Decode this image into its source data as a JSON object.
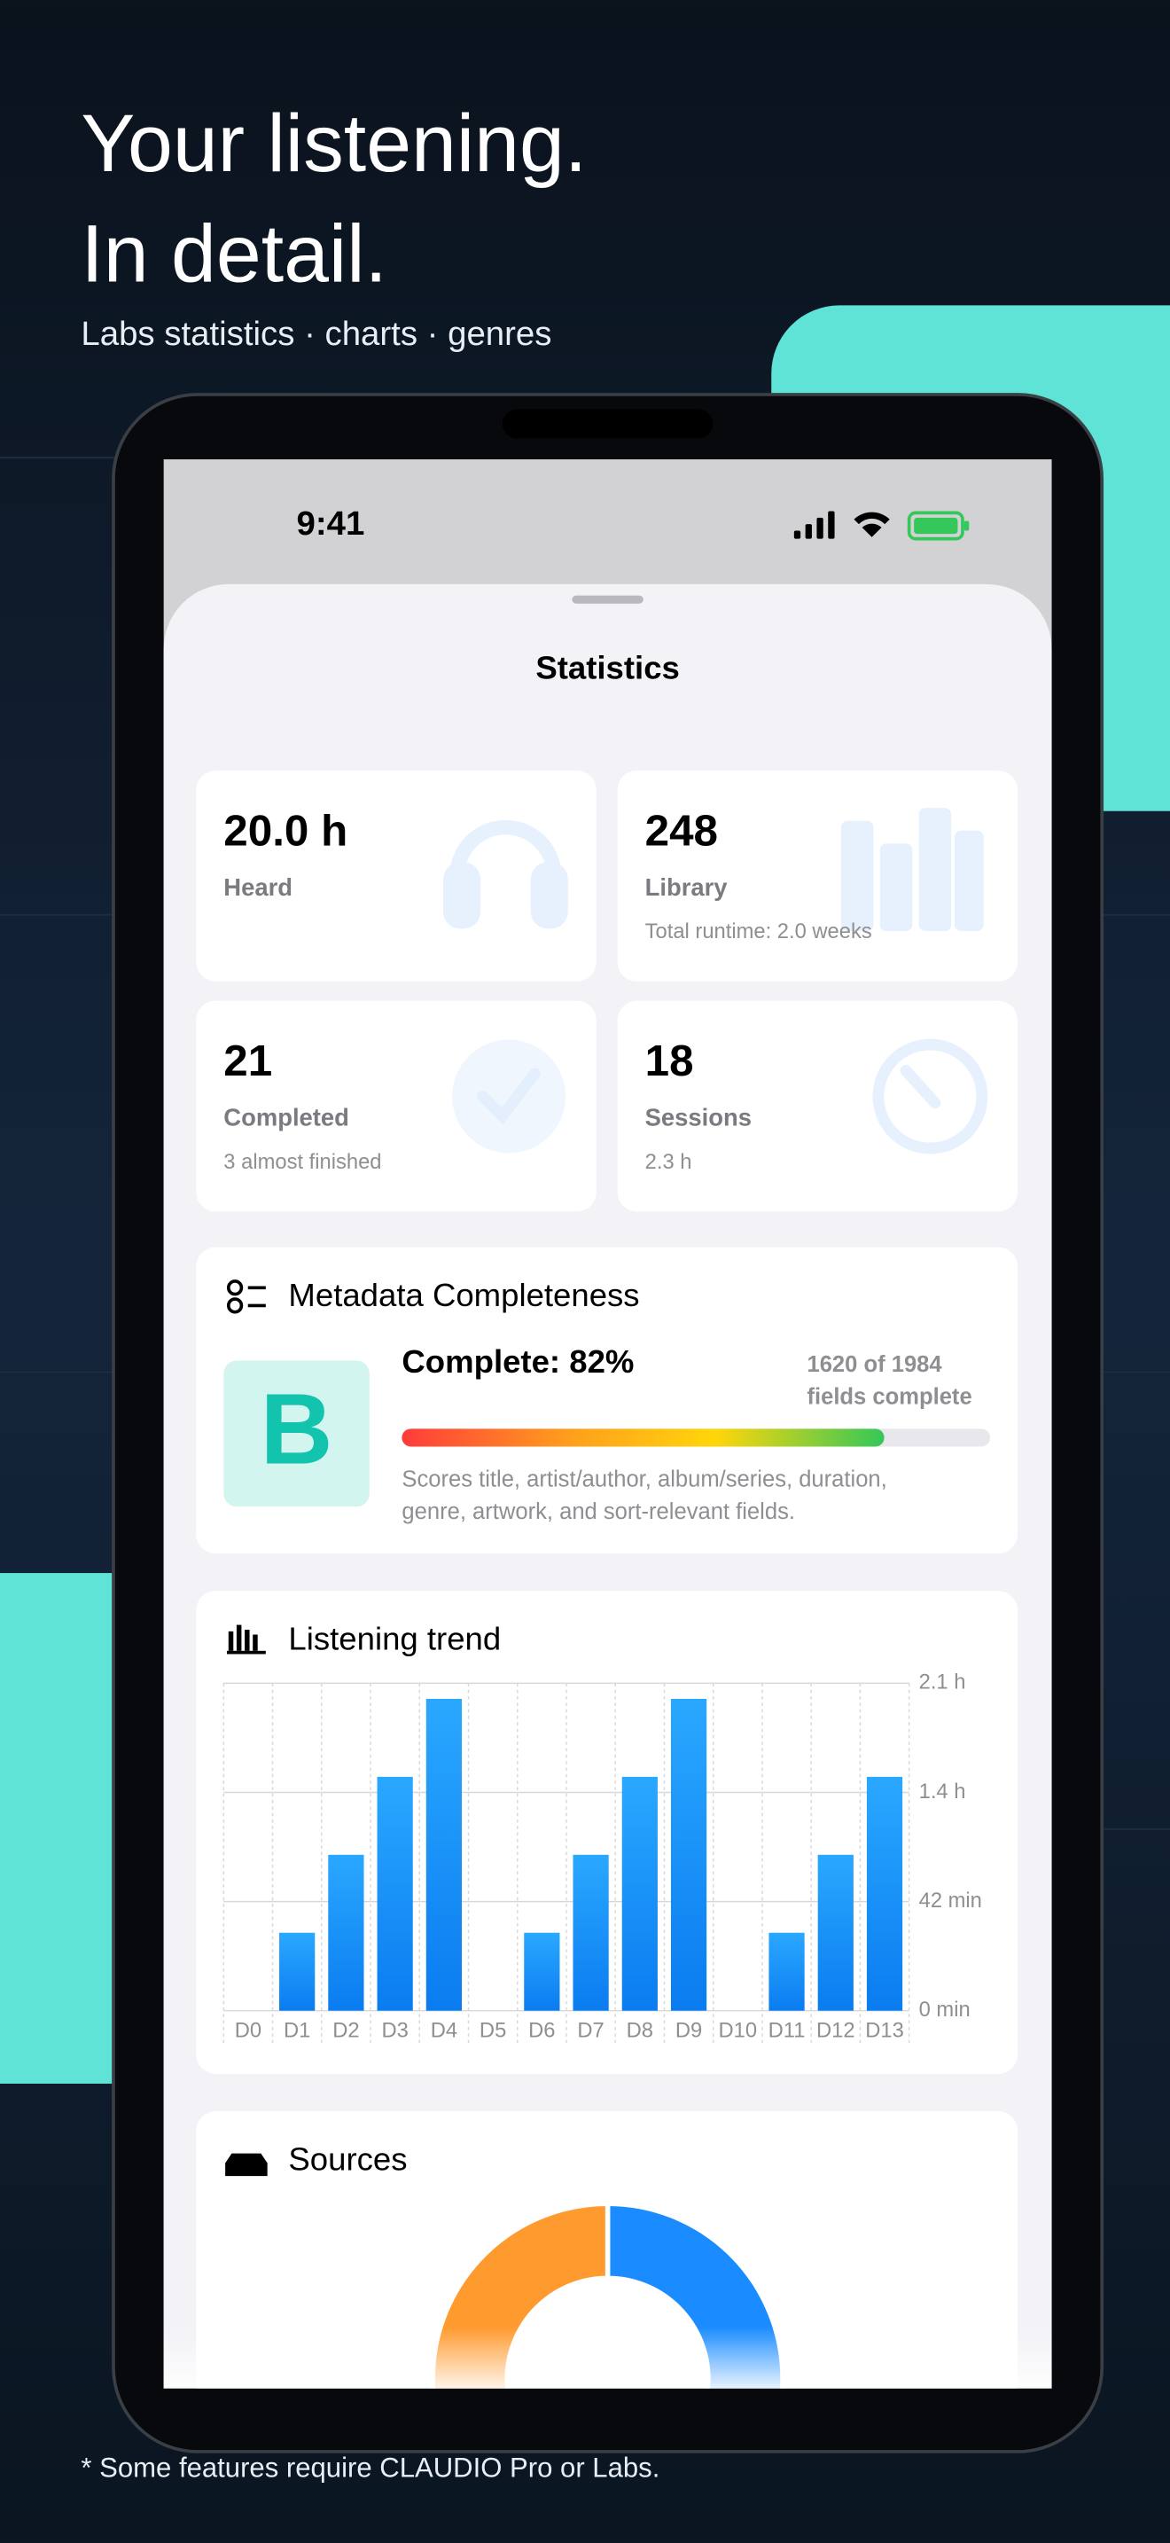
{
  "header": {
    "title_lines": [
      "Your listening.",
      "In detail."
    ],
    "subtitle": "Labs statistics · charts · genres"
  },
  "status_bar": {
    "time": "9:41"
  },
  "screen_title": "Statistics",
  "stat_cards": [
    {
      "value": "20.0 h",
      "label": "Heard"
    },
    {
      "value": "248",
      "label": "Library",
      "detail": "Total runtime: 2.0 weeks"
    },
    {
      "value": "21",
      "label": "Completed",
      "detail": "3 almost finished"
    },
    {
      "value": "18",
      "label": "Sessions",
      "detail": "2.3 h"
    }
  ],
  "metadata": {
    "title": "Metadata Completeness",
    "grade": "B",
    "percent_label": "Complete: 82%",
    "percent": 82,
    "fields_lines": [
      "1620 of 1984",
      "fields complete"
    ],
    "description_lines": [
      "Scores title, artist/author, album/series, duration,",
      "genre, artwork, and sort-relevant fields."
    ]
  },
  "chart_data": [
    {
      "type": "bar",
      "title": "Listening trend",
      "categories": [
        "D0",
        "D1",
        "D2",
        "D3",
        "D4",
        "D5",
        "D6",
        "D7",
        "D8",
        "D9",
        "D10",
        "D11",
        "D12",
        "D13"
      ],
      "values": [
        0,
        30,
        60,
        90,
        120,
        0,
        30,
        60,
        90,
        120,
        0,
        30,
        60,
        90
      ],
      "color": "#1a8cff",
      "ylim": [
        0,
        126
      ],
      "yticks": [
        {
          "value": 0,
          "label": "0 min"
        },
        {
          "value": 42,
          "label": "42 min"
        },
        {
          "value": 84,
          "label": "1.4 h"
        },
        {
          "value": 126,
          "label": "2.1 h"
        }
      ],
      "grid": true
    },
    {
      "type": "pie",
      "title": "Sources",
      "values": [
        50,
        50
      ],
      "colors": [
        "#1a8cff",
        "#ff9a2e"
      ],
      "donut": true
    }
  ],
  "footnote": "* Some features require CLAUDIO Pro or Labs."
}
